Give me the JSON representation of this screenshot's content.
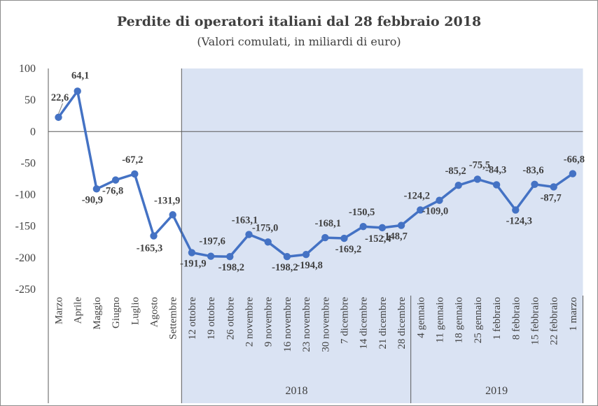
{
  "chart_data": {
    "type": "line",
    "title": "Perdite di operatori italiani  dal 28 febbraio 2018",
    "subtitle": "(Valori comulati, in miliardi di euro)",
    "categories": [
      "Marzo",
      "Aprile",
      "Maggio",
      "Giugno",
      "Luglio",
      "Agosto",
      "Settembre",
      "12 ottobre",
      "19 ottobre",
      "26 ottobre",
      "2 novembre",
      "9 novembre",
      "16 novembre",
      "23 novembre",
      "30 novembre",
      "7 dicembre",
      "14 dicembre",
      "21 dicembre",
      "28 dicembre",
      "4 gennaio",
      "11 gennaio",
      "18 gennaio",
      "25 gennaio",
      "1 febbraio",
      "8 febbraio",
      "15 febbraio",
      "22 febbraio",
      "1 marzo"
    ],
    "values": [
      22.6,
      64.1,
      -90.9,
      -76.8,
      -67.2,
      -165.3,
      -131.9,
      -191.9,
      -197.6,
      -198.2,
      -163.1,
      -175.0,
      -198.2,
      -194.8,
      -168.1,
      -169.2,
      -150.5,
      -152.4,
      -148.7,
      -124.2,
      -109.0,
      -85.2,
      -75.5,
      -84.3,
      -124.3,
      -83.6,
      -87.7,
      -66.8
    ],
    "data_labels": [
      "22,6",
      "64,1",
      "-90,9",
      "-76,8",
      "-67,2",
      "-165,3",
      "-131,9",
      "-191,9",
      "-197,6",
      "-198,2",
      "-163,1",
      "-175,0",
      "-198,2",
      "-194,8",
      "-168,1",
      "-169,2",
      "-150,5",
      "-152,4",
      "-148,7",
      "-124,2",
      "-109,0",
      "-85,2",
      "-75,5",
      "-84,3",
      "-124,3",
      "-83,6",
      "-87,7",
      "-66,8"
    ],
    "y_ticks": [
      "100",
      "50",
      "0",
      "-50",
      "-100",
      "-150",
      "-200",
      "-250"
    ],
    "ylim": [
      -250,
      100
    ],
    "groups": [
      {
        "label": "2018",
        "from": "12 ottobre",
        "to": "28 dicembre"
      },
      {
        "label": "2019",
        "from": "4 gennaio",
        "to": "1 marzo"
      }
    ],
    "shaded_from": "12 ottobre",
    "grid": false,
    "legend": "none",
    "colors": {
      "line": "#4472C4",
      "shade": "#DAE3F3",
      "text": "#404040",
      "axis": "#595959"
    }
  }
}
